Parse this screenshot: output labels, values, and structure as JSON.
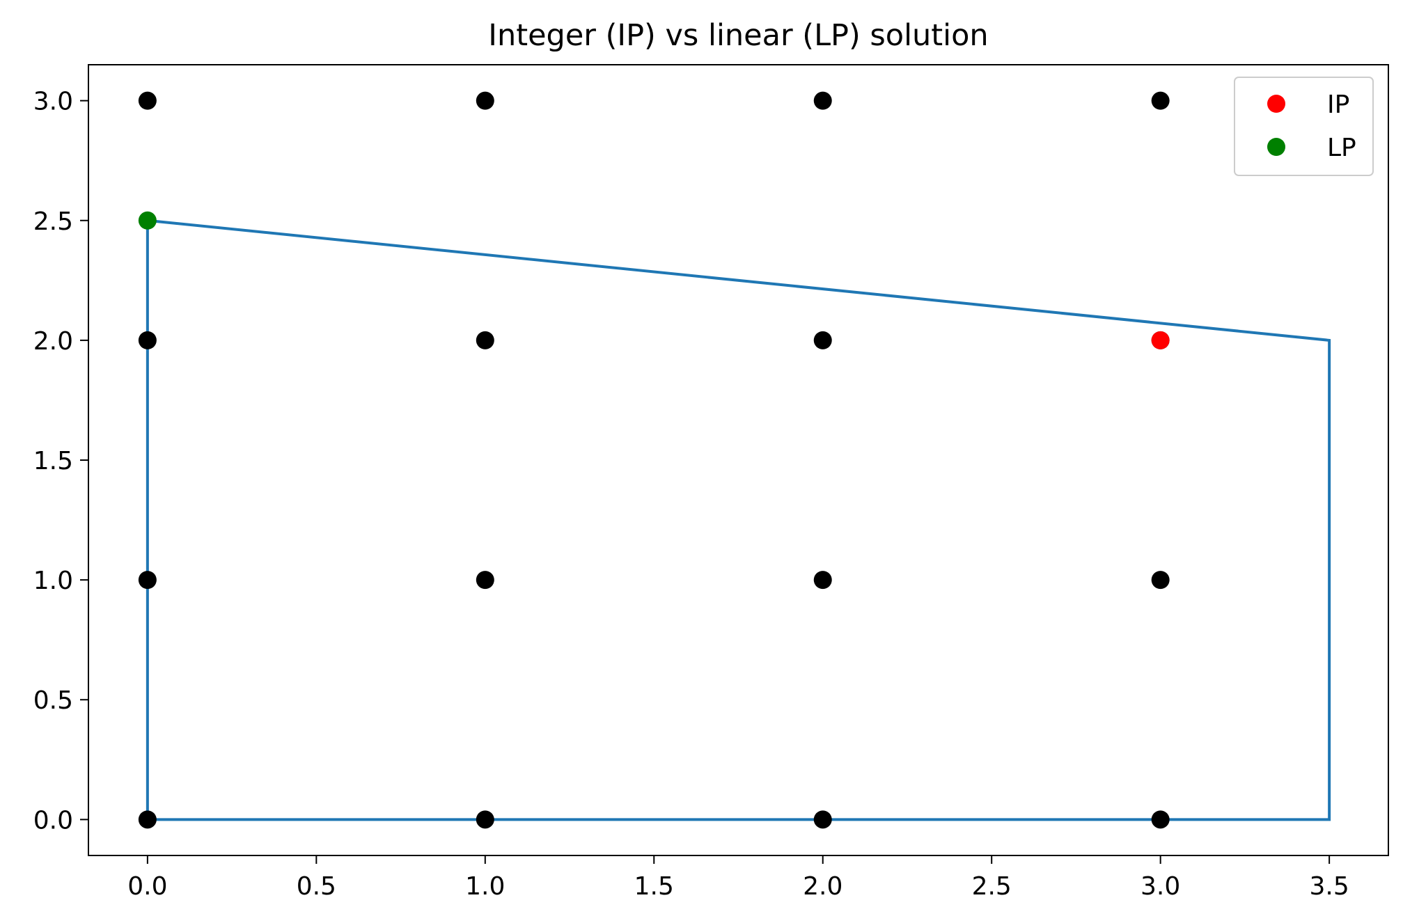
{
  "chart_data": {
    "type": "scatter",
    "title": "Integer (IP) vs linear (LP) solution",
    "xlabel": "",
    "ylabel": "",
    "xlim": [
      -0.175,
      3.675
    ],
    "ylim": [
      -0.15,
      3.15
    ],
    "x_ticks": [
      "0.0",
      "0.5",
      "1.0",
      "1.5",
      "2.0",
      "2.5",
      "3.0",
      "3.5"
    ],
    "y_ticks": [
      "0.0",
      "0.5",
      "1.0",
      "1.5",
      "2.0",
      "2.5",
      "3.0"
    ],
    "grid": false,
    "legend_position": "top-right",
    "lattice_points": {
      "color": "#000000",
      "points": [
        [
          0,
          0
        ],
        [
          0,
          1
        ],
        [
          0,
          2
        ],
        [
          0,
          3
        ],
        [
          1,
          0
        ],
        [
          1,
          1
        ],
        [
          1,
          2
        ],
        [
          1,
          3
        ],
        [
          2,
          0
        ],
        [
          2,
          1
        ],
        [
          2,
          2
        ],
        [
          2,
          3
        ],
        [
          3,
          0
        ],
        [
          3,
          1
        ],
        [
          3,
          2
        ],
        [
          3,
          3
        ]
      ]
    },
    "feasible_region": {
      "color": "#1f77b4",
      "vertices": [
        [
          0,
          0
        ],
        [
          0,
          2.5
        ],
        [
          3.5,
          2
        ],
        [
          3.5,
          0
        ],
        [
          0,
          0
        ]
      ]
    },
    "series": [
      {
        "name": "IP",
        "color": "#ff0000",
        "points": [
          [
            3,
            2
          ]
        ]
      },
      {
        "name": "LP",
        "color": "#008000",
        "points": [
          [
            0,
            2.5
          ]
        ]
      }
    ]
  }
}
